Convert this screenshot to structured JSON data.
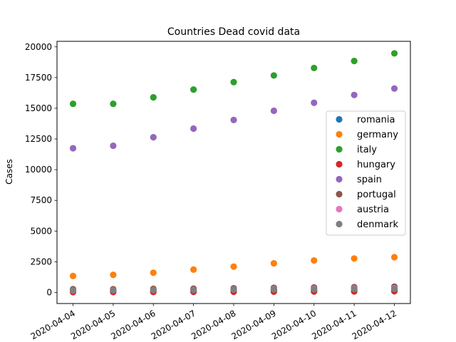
{
  "chart_data": {
    "type": "scatter",
    "title": "Countries Dead covid data",
    "xlabel": "",
    "ylabel": "Cases",
    "x": [
      "2020-04-04",
      "2020-04-05",
      "2020-04-06",
      "2020-04-07",
      "2020-04-08",
      "2020-04-09",
      "2020-04-10",
      "2020-04-11",
      "2020-04-12"
    ],
    "ylim": [
      -900,
      20450
    ],
    "yticks": [
      0,
      2500,
      5000,
      7500,
      10000,
      12500,
      15000,
      17500,
      20000
    ],
    "ytick_labels": [
      "0",
      "2500",
      "5000",
      "7500",
      "10000",
      "12500",
      "15000",
      "17500",
      "20000"
    ],
    "grid": false,
    "legend_position": "center-right",
    "series": [
      {
        "name": "romania",
        "color": "#1f77b4",
        "values": [
          86,
          94,
          118,
          133,
          146,
          158,
          176,
          200,
          215
        ]
      },
      {
        "name": "germany",
        "color": "#ff7f0e",
        "values": [
          1342,
          1434,
          1607,
          1861,
          2107,
          2373,
          2607,
          2767,
          2873
        ]
      },
      {
        "name": "italy",
        "color": "#2ca02c",
        "values": [
          15362,
          15362,
          15887,
          16523,
          17127,
          17669,
          18279,
          18849,
          19468
        ]
      },
      {
        "name": "hungary",
        "color": "#d62728",
        "values": [
          32,
          34,
          38,
          47,
          58,
          66,
          77,
          85,
          99
        ]
      },
      {
        "name": "spain",
        "color": "#9467bd",
        "values": [
          11744,
          11947,
          12641,
          13341,
          14045,
          14792,
          15447,
          16081,
          16606
        ]
      },
      {
        "name": "portugal",
        "color": "#8c564b",
        "values": [
          266,
          266,
          295,
          311,
          345,
          380,
          409,
          435,
          470
        ]
      },
      {
        "name": "austria",
        "color": "#e377c2",
        "values": [
          168,
          186,
          204,
          220,
          243,
          273,
          295,
          319,
          337
        ]
      },
      {
        "name": "denmark",
        "color": "#7f7f7f",
        "values": [
          179,
          187,
          203,
          218,
          237,
          247,
          260,
          273,
          285
        ]
      }
    ]
  }
}
